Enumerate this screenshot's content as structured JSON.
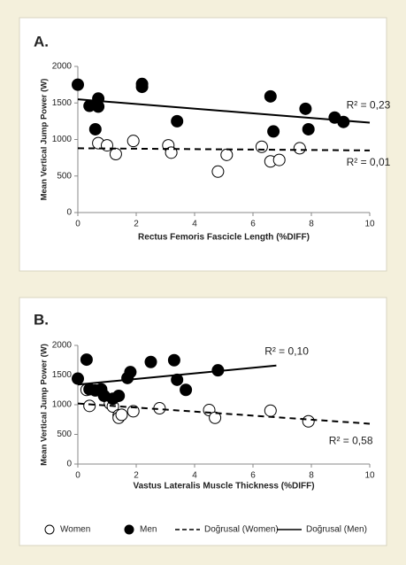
{
  "chart_data": [
    {
      "type": "scatter",
      "title": "A.",
      "y_label": "Mean Vertical Jump Power (W)",
      "x_label": "Rectus Femoris Fascicle Length (%DIFF)",
      "xlim": [
        0,
        10
      ],
      "xticks": [
        0,
        2,
        4,
        6,
        8,
        10
      ],
      "ylim": [
        0,
        2000
      ],
      "yticks": [
        0,
        500,
        1000,
        1500,
        2000
      ],
      "annotations": [
        "R² = 0,23",
        "R² = 0,01"
      ],
      "series": [
        {
          "name": "Women",
          "style": "open",
          "color": "#000000",
          "x": [
            0.7,
            1.0,
            1.3,
            1.9,
            3.1,
            3.2,
            4.8,
            5.1,
            6.3,
            6.6,
            6.9,
            7.6
          ],
          "values": [
            950,
            920,
            800,
            980,
            920,
            820,
            560,
            790,
            900,
            700,
            720,
            880
          ]
        },
        {
          "name": "Men",
          "style": "filled",
          "color": "#000000",
          "x": [
            0,
            0.4,
            0.6,
            0.7,
            0.7,
            2.2,
            2.2,
            3.4,
            6.6,
            6.7,
            7.8,
            7.9,
            8.8,
            9.1
          ],
          "values": [
            1750,
            1460,
            1140,
            1560,
            1450,
            1760,
            1720,
            1250,
            1590,
            1110,
            1420,
            1140,
            1300,
            1240
          ]
        },
        {
          "name": "Doğrusal (Women)",
          "style": "dashed",
          "color": "#000000",
          "x": [
            0,
            10
          ],
          "values": [
            880,
            850
          ]
        },
        {
          "name": "Doğrusal (Men)",
          "style": "solid",
          "color": "#000000",
          "x": [
            0,
            10
          ],
          "values": [
            1550,
            1230
          ]
        }
      ]
    },
    {
      "type": "scatter",
      "title": "B.",
      "y_label": "Mean Vertical Jump Power (W)",
      "x_label": "Vastus Lateralis Muscle Thickness (%DIFF)",
      "xlim": [
        0,
        10
      ],
      "xticks": [
        0,
        2,
        4,
        6,
        8,
        10
      ],
      "ylim": [
        0,
        2000
      ],
      "yticks": [
        0,
        500,
        1000,
        1500,
        2000
      ],
      "annotations": [
        "R² = 0,10",
        "R² = 0,58"
      ],
      "series": [
        {
          "style": "open",
          "color": "#000000",
          "x": [
            0.3,
            0.4,
            0.8,
            1.1,
            1.2,
            1.4,
            1.4,
            1.5,
            1.9,
            2.8,
            4.5,
            4.7,
            6.6,
            7.9
          ],
          "values": [
            1250,
            980,
            1230,
            1020,
            970,
            820,
            780,
            830,
            890,
            940,
            910,
            780,
            900,
            720
          ]
        },
        {
          "style": "filled",
          "color": "#000000",
          "x": [
            0,
            0.3,
            0.4,
            0.6,
            0.8,
            0.9,
            1.2,
            1.4,
            1.7,
            1.8,
            2.5,
            3.3,
            3.4,
            3.7,
            4.8
          ],
          "values": [
            1440,
            1760,
            1260,
            1240,
            1260,
            1150,
            1100,
            1150,
            1450,
            1550,
            1720,
            1750,
            1420,
            1250,
            1580
          ]
        },
        {
          "style": "dashed",
          "color": "#000000",
          "x": [
            0,
            10
          ],
          "values": [
            1020,
            680
          ]
        },
        {
          "style": "solid",
          "color": "#000000",
          "x": [
            0,
            6.8
          ],
          "values": [
            1340,
            1660
          ]
        }
      ]
    }
  ]
}
